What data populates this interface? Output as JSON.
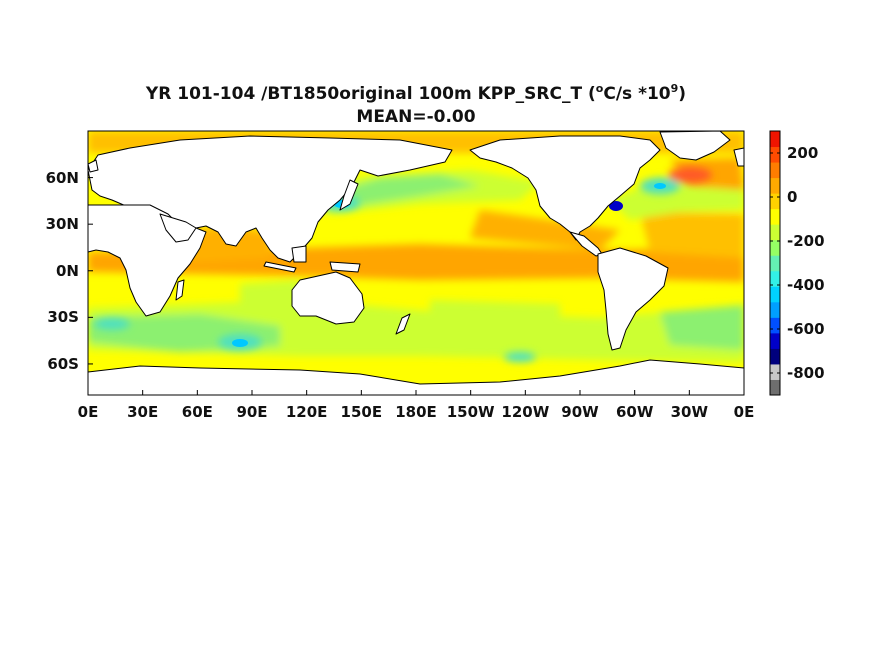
{
  "title": {
    "line1_prefix": "YR 101-104 /BT1850original 100m KPP_SRC_T (",
    "line1_deg": "o",
    "line1_mid": "C/s *10",
    "line1_exp": "9",
    "line1_suffix": ")",
    "line2": "MEAN=-0.00"
  },
  "map": {
    "projection": "equirectangular",
    "lon_range": [
      0,
      360
    ],
    "lat_range": [
      -80,
      90
    ],
    "land_color": "#ffffff",
    "coastline_color": "#000000",
    "field_colors": {
      "strong_positive": "#ff5a28",
      "positive": "#ffa500",
      "weak_positive": "#ffc000",
      "near_zero": "#ffff00",
      "weak_negative": "#ccff33",
      "moderate_negative": "#8cf070",
      "negative": "#50e0c0",
      "strong_negative": "#00c8ff",
      "very_strong_negative": "#0000c8"
    },
    "x_tick_labels": [
      "0E",
      "30E",
      "60E",
      "90E",
      "120E",
      "150E",
      "180E",
      "150W",
      "120W",
      "90W",
      "60W",
      "30W",
      "0E"
    ],
    "y_tick_labels": [
      "60N",
      "30N",
      "0N",
      "30S",
      "60S"
    ]
  },
  "colorbar": {
    "range": [
      -900,
      300
    ],
    "tick_labels": [
      "200",
      "0",
      "-200",
      "-400",
      "-600",
      "-800"
    ],
    "colors": [
      "#6e6e6e",
      "#c8c8c8",
      "#00007d",
      "#0000c8",
      "#0050ff",
      "#00a0ff",
      "#00d2ff",
      "#32f0e6",
      "#64f0b4",
      "#96ff64",
      "#ccff33",
      "#ffff00",
      "#ffd200",
      "#ffaa00",
      "#ff7d00",
      "#ff4b00",
      "#f01400"
    ]
  }
}
